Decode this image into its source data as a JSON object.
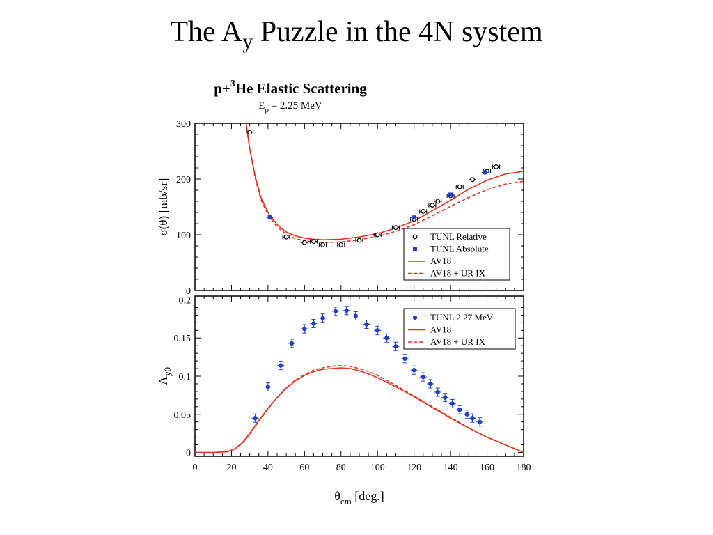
{
  "slide": {
    "title_pre": "The A",
    "title_sub": "y",
    "title_post": " Puzzle in the 4N system"
  },
  "colors": {
    "data_blue": "#1f3fc4",
    "theory_red": "#e8311e",
    "axis": "#000000"
  },
  "chart_data": [
    {
      "type": "scatter",
      "title": "p+³He Elastic Scattering",
      "title_parts": {
        "pre": "p+",
        "sup": "3",
        "post": "He Elastic Scattering"
      },
      "subtitle": "Ep = 2.25 MeV",
      "subtitle_parts": {
        "pre": "E",
        "sub": "p",
        "post": " = 2.25 MeV"
      },
      "xlabel": "θcm [deg.]",
      "ylabel": "σ(θ) [mb/sr]",
      "xlim": [
        0,
        180
      ],
      "ylim": [
        0,
        300
      ],
      "yticks": [
        0,
        100,
        200,
        300
      ],
      "legend_position": "lower-right",
      "series": [
        {
          "name": "TUNL Relative",
          "marker": "open-circle",
          "points": [
            [
              30,
              284
            ],
            [
              50,
              96
            ],
            [
              60,
              86
            ],
            [
              65,
              88
            ],
            [
              70,
              82
            ],
            [
              80,
              82
            ],
            [
              90,
              90
            ],
            [
              100,
              100
            ],
            [
              110,
              113
            ],
            [
              120,
              128
            ],
            [
              125,
              142
            ],
            [
              130,
              153
            ],
            [
              133,
              160
            ],
            [
              140,
              170
            ],
            [
              145,
              186
            ],
            [
              152,
              199
            ],
            [
              160,
              214
            ],
            [
              165,
              222
            ]
          ]
        },
        {
          "name": "TUNL Absolute",
          "marker": "filled-square",
          "points": [
            [
              41,
              131
            ],
            [
              120,
              131
            ],
            [
              140,
              172
            ],
            [
              159,
              212
            ]
          ]
        },
        {
          "name": "AV18",
          "style": "solid",
          "points": [
            [
              28,
              300
            ],
            [
              30,
              255
            ],
            [
              33,
              205
            ],
            [
              36,
              168
            ],
            [
              40,
              140
            ],
            [
              45,
              118
            ],
            [
              50,
              105
            ],
            [
              55,
              98
            ],
            [
              60,
              94
            ],
            [
              65,
              92
            ],
            [
              70,
              91
            ],
            [
              80,
              92
            ],
            [
              90,
              96
            ],
            [
              100,
              102
            ],
            [
              110,
              112
            ],
            [
              120,
              125
            ],
            [
              130,
              143
            ],
            [
              140,
              162
            ],
            [
              150,
              182
            ],
            [
              160,
              198
            ],
            [
              170,
              209
            ],
            [
              180,
              214
            ]
          ]
        },
        {
          "name": "AV18 + UR IX",
          "style": "dashed",
          "points": [
            [
              28,
              300
            ],
            [
              30,
              253
            ],
            [
              33,
              202
            ],
            [
              36,
              164
            ],
            [
              40,
              136
            ],
            [
              45,
              114
            ],
            [
              50,
              101
            ],
            [
              55,
              93
            ],
            [
              60,
              89
            ],
            [
              65,
              87
            ],
            [
              70,
              86
            ],
            [
              80,
              87
            ],
            [
              90,
              91
            ],
            [
              100,
              97
            ],
            [
              110,
              106
            ],
            [
              120,
              118
            ],
            [
              130,
              134
            ],
            [
              140,
              151
            ],
            [
              150,
              167
            ],
            [
              160,
              181
            ],
            [
              170,
              191
            ],
            [
              180,
              196
            ]
          ]
        }
      ]
    },
    {
      "type": "scatter",
      "xlabel": "θcm [deg.]",
      "xlabel_parts": {
        "pre": "θ",
        "sub": "cm",
        "post": "  [deg.]"
      },
      "ylabel": "Ay0",
      "ylabel_parts": {
        "pre": "A",
        "sub": "y0"
      },
      "xlim": [
        0,
        180
      ],
      "ylim": [
        -0.005,
        0.205
      ],
      "xticks": [
        0,
        20,
        40,
        60,
        80,
        100,
        120,
        140,
        160,
        180
      ],
      "yticks": [
        0,
        0.05,
        0.1,
        0.15,
        0.2
      ],
      "ytick_labels": [
        "0",
        "0.05",
        "0.1",
        "0.15",
        "0.2"
      ],
      "legend_position": "upper-right",
      "series": [
        {
          "name": "TUNL 2.27 MeV",
          "marker": "filled-circle",
          "points": [
            [
              33,
              0.045
            ],
            [
              40,
              0.086
            ],
            [
              47,
              0.114
            ],
            [
              53,
              0.143
            ],
            [
              60,
              0.162
            ],
            [
              65,
              0.169
            ],
            [
              70,
              0.176
            ],
            [
              77,
              0.185
            ],
            [
              83,
              0.186
            ],
            [
              88,
              0.179
            ],
            [
              94,
              0.168
            ],
            [
              100,
              0.16
            ],
            [
              105,
              0.15
            ],
            [
              110,
              0.139
            ],
            [
              115,
              0.123
            ],
            [
              120,
              0.108
            ],
            [
              125,
              0.099
            ],
            [
              129,
              0.09
            ],
            [
              133,
              0.079
            ],
            [
              137,
              0.072
            ],
            [
              141,
              0.064
            ],
            [
              145,
              0.056
            ],
            [
              149,
              0.05
            ],
            [
              152,
              0.045
            ],
            [
              156,
              0.04
            ]
          ]
        },
        {
          "name": "AV18",
          "style": "solid",
          "points": [
            [
              0,
              0
            ],
            [
              10,
              0
            ],
            [
              18,
              0.001
            ],
            [
              22,
              0.005
            ],
            [
              26,
              0.013
            ],
            [
              30,
              0.025
            ],
            [
              35,
              0.042
            ],
            [
              40,
              0.058
            ],
            [
              45,
              0.072
            ],
            [
              50,
              0.084
            ],
            [
              55,
              0.094
            ],
            [
              60,
              0.101
            ],
            [
              65,
              0.106
            ],
            [
              70,
              0.109
            ],
            [
              75,
              0.11
            ],
            [
              80,
              0.111
            ],
            [
              85,
              0.11
            ],
            [
              90,
              0.107
            ],
            [
              95,
              0.103
            ],
            [
              100,
              0.098
            ],
            [
              110,
              0.086
            ],
            [
              120,
              0.073
            ],
            [
              130,
              0.059
            ],
            [
              140,
              0.045
            ],
            [
              150,
              0.032
            ],
            [
              160,
              0.02
            ],
            [
              170,
              0.01
            ],
            [
              180,
              0
            ]
          ]
        },
        {
          "name": "AV18 + UR IX",
          "style": "dashed",
          "points": [
            [
              0,
              0
            ],
            [
              10,
              0
            ],
            [
              18,
              0.001
            ],
            [
              22,
              0.005
            ],
            [
              26,
              0.012
            ],
            [
              30,
              0.024
            ],
            [
              35,
              0.041
            ],
            [
              40,
              0.057
            ],
            [
              45,
              0.072
            ],
            [
              50,
              0.085
            ],
            [
              55,
              0.095
            ],
            [
              60,
              0.102
            ],
            [
              65,
              0.108
            ],
            [
              70,
              0.111
            ],
            [
              75,
              0.113
            ],
            [
              80,
              0.114
            ],
            [
              85,
              0.113
            ],
            [
              90,
              0.11
            ],
            [
              95,
              0.106
            ],
            [
              100,
              0.101
            ],
            [
              110,
              0.088
            ],
            [
              120,
              0.074
            ],
            [
              130,
              0.06
            ],
            [
              140,
              0.046
            ],
            [
              150,
              0.032
            ],
            [
              160,
              0.02
            ],
            [
              170,
              0.01
            ],
            [
              180,
              0
            ]
          ]
        }
      ]
    }
  ]
}
